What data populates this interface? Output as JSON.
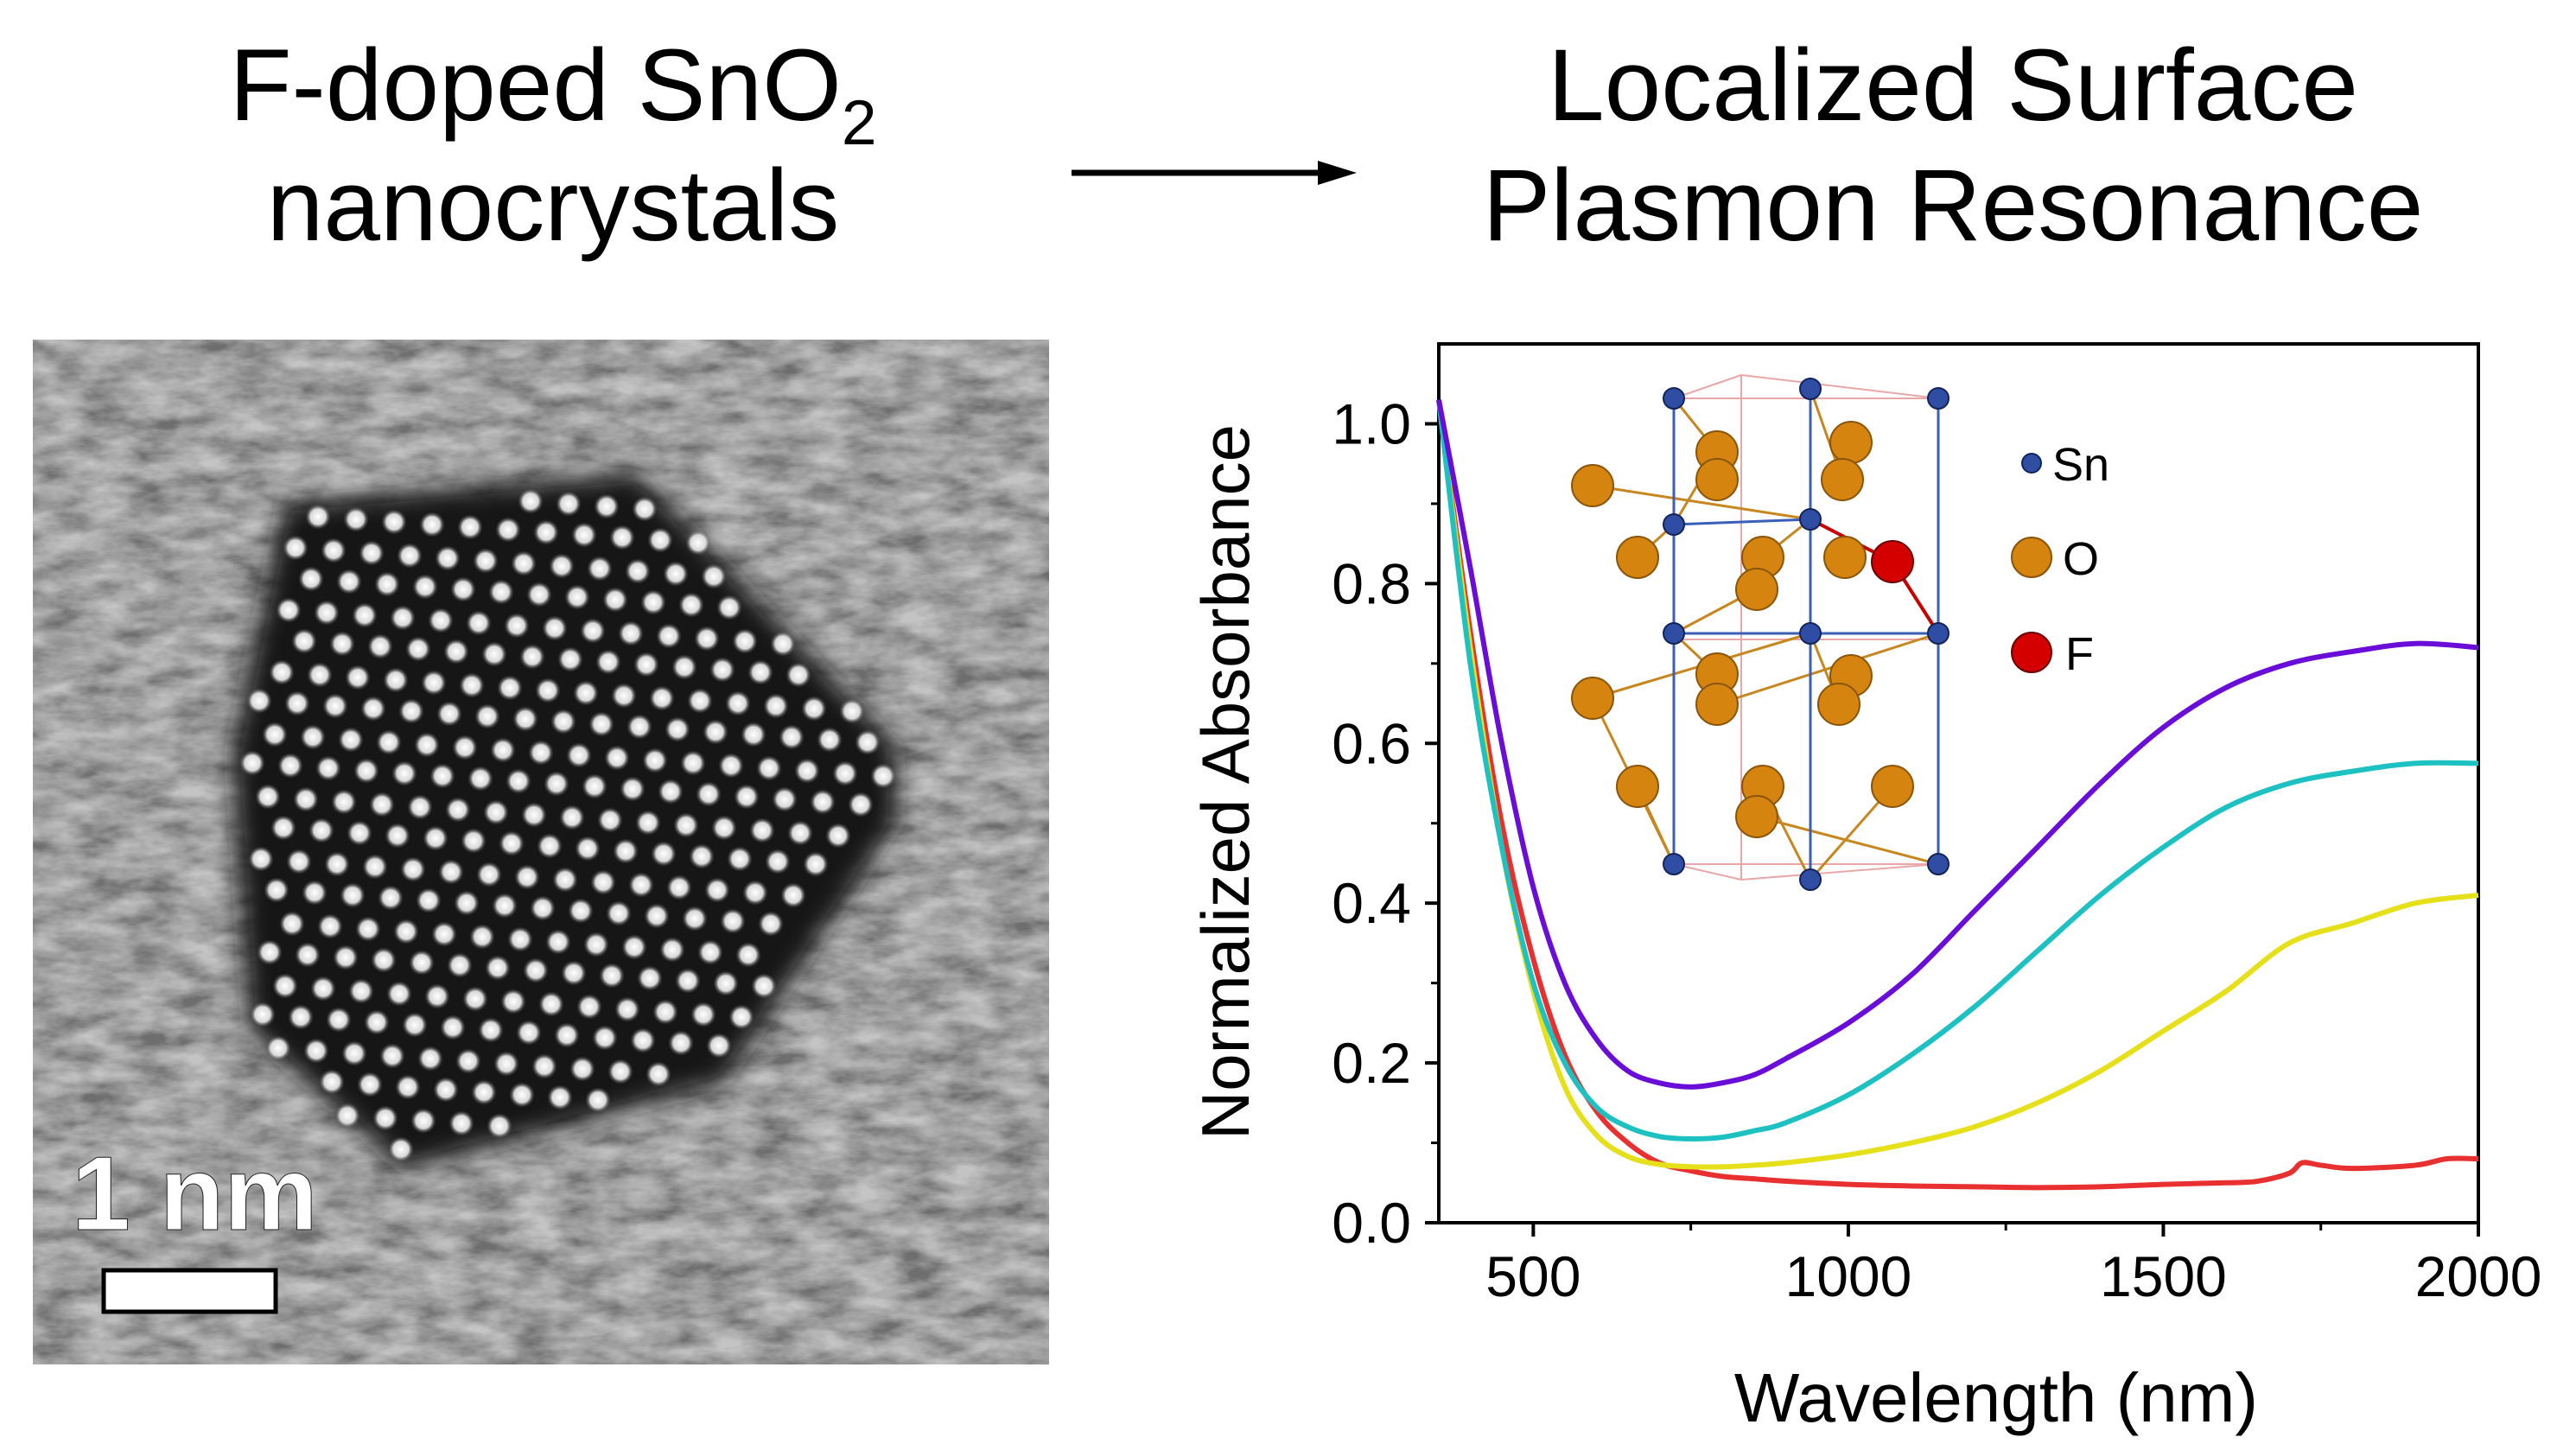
{
  "left_title": {
    "line1": "F-doped SnO",
    "subscript": "2",
    "line2": "nanocrystals"
  },
  "right_title": {
    "line1": "Localized Surface",
    "line2": "Plasmon Resonance"
  },
  "tem": {
    "scale_bar_label": "1 nm"
  },
  "legend": {
    "items": [
      {
        "label": "Sn",
        "color": "#2f4ea3"
      },
      {
        "label": "O",
        "color": "#d4840f"
      },
      {
        "label": "F",
        "color": "#d40000"
      }
    ]
  },
  "chart_data": {
    "type": "line",
    "title": "",
    "xlabel": "Wavelength (nm)",
    "ylabel": "Normalized Absorbance",
    "xlim": [
      350,
      2000
    ],
    "ylim": [
      0,
      1.1
    ],
    "xticks": [
      500,
      1000,
      1500,
      2000
    ],
    "yticks": [
      0.0,
      0.2,
      0.4,
      0.6,
      0.8,
      1.0
    ],
    "series": [
      {
        "name": "purple",
        "color": "#6a0dd8",
        "x": [
          350,
          400,
          450,
          500,
          550,
          600,
          650,
          700,
          750,
          800,
          850,
          900,
          1000,
          1100,
          1200,
          1300,
          1400,
          1500,
          1600,
          1700,
          1800,
          1900,
          2000
        ],
        "y": [
          1.03,
          0.82,
          0.6,
          0.42,
          0.3,
          0.23,
          0.19,
          0.175,
          0.17,
          0.175,
          0.185,
          0.205,
          0.25,
          0.31,
          0.39,
          0.47,
          0.55,
          0.62,
          0.67,
          0.7,
          0.715,
          0.725,
          0.72
        ]
      },
      {
        "name": "cyan",
        "color": "#1ec1c1",
        "x": [
          350,
          400,
          450,
          500,
          550,
          600,
          650,
          700,
          750,
          800,
          850,
          900,
          1000,
          1100,
          1200,
          1300,
          1400,
          1500,
          1600,
          1700,
          1800,
          1900,
          2000
        ],
        "y": [
          1.03,
          0.7,
          0.47,
          0.3,
          0.2,
          0.145,
          0.12,
          0.108,
          0.105,
          0.107,
          0.115,
          0.125,
          0.16,
          0.21,
          0.27,
          0.34,
          0.41,
          0.47,
          0.52,
          0.55,
          0.565,
          0.575,
          0.575
        ]
      },
      {
        "name": "yellow",
        "color": "#e5e01a",
        "x": [
          350,
          400,
          450,
          500,
          550,
          600,
          650,
          700,
          750,
          800,
          850,
          900,
          1000,
          1100,
          1200,
          1300,
          1400,
          1500,
          1600,
          1700,
          1800,
          1900,
          2000
        ],
        "y": [
          1.03,
          0.72,
          0.47,
          0.29,
          0.17,
          0.11,
          0.083,
          0.073,
          0.07,
          0.07,
          0.072,
          0.075,
          0.085,
          0.1,
          0.12,
          0.15,
          0.19,
          0.24,
          0.29,
          0.35,
          0.375,
          0.4,
          0.41
        ]
      },
      {
        "name": "red",
        "color": "#e83030",
        "x": [
          350,
          400,
          450,
          500,
          550,
          600,
          650,
          700,
          750,
          800,
          850,
          900,
          1000,
          1100,
          1200,
          1300,
          1400,
          1500,
          1600,
          1650,
          1700,
          1720,
          1750,
          1800,
          1900,
          1950,
          2000
        ],
        "y": [
          1.03,
          0.74,
          0.5,
          0.33,
          0.21,
          0.14,
          0.1,
          0.075,
          0.065,
          0.058,
          0.055,
          0.052,
          0.048,
          0.046,
          0.045,
          0.044,
          0.045,
          0.048,
          0.05,
          0.052,
          0.062,
          0.075,
          0.072,
          0.068,
          0.072,
          0.08,
          0.08
        ]
      }
    ]
  }
}
